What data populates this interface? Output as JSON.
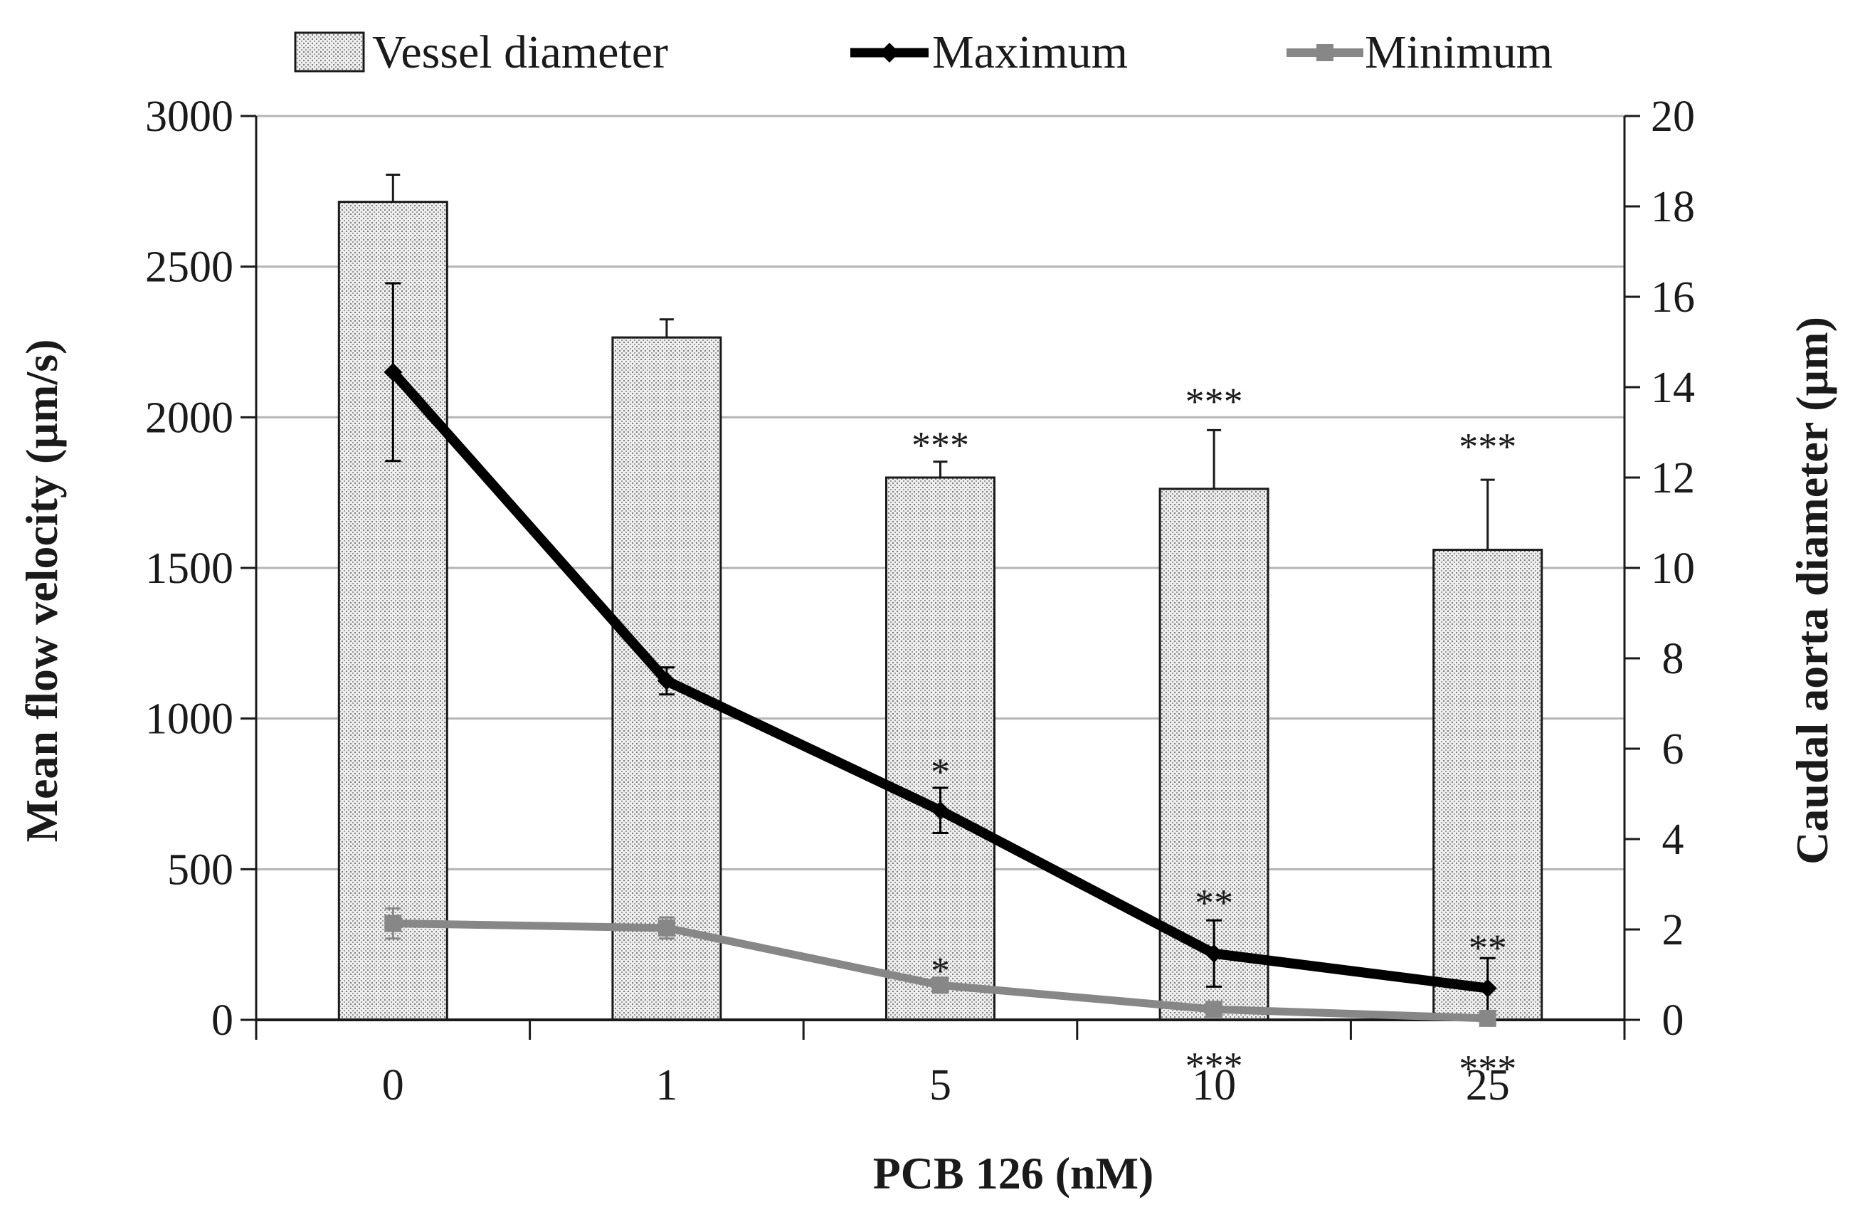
{
  "chart_data": {
    "type": "bar+line",
    "title": "",
    "xlabel": "PCB 126 (nM)",
    "ylabel_left": "Mean flow velocity (µm/s)",
    "ylabel_right": "Caudal aorta diameter (µm)",
    "ylim_left": [
      0,
      3000
    ],
    "yticks_left": [
      0,
      500,
      1000,
      1500,
      2000,
      2500,
      3000
    ],
    "ylim_right": [
      0,
      20
    ],
    "yticks_right": [
      0,
      2,
      4,
      6,
      8,
      10,
      12,
      14,
      16,
      18,
      20
    ],
    "grid": true,
    "legend_position": "top",
    "categories": [
      "0",
      "1",
      "5",
      "10",
      "25"
    ],
    "bar_series": {
      "name": "Vessel diameter",
      "axis": "right",
      "values": [
        18.1,
        15.1,
        12.0,
        11.75,
        10.4
      ],
      "errors": [
        0.6,
        0.4,
        0.35,
        1.3,
        1.55
      ],
      "fill": "#e6e6e6",
      "stroke": "#1a1a1a"
    },
    "line_series": [
      {
        "name": "Maximum",
        "axis": "left",
        "values": [
          2150,
          1125,
          695,
          220,
          105
        ],
        "errors": [
          295,
          45,
          75,
          110,
          100
        ],
        "color": "#000000",
        "marker": "diamond"
      },
      {
        "name": "Minimum",
        "axis": "left",
        "values": [
          320,
          305,
          115,
          35,
          5
        ],
        "errors": [
          50,
          35,
          12,
          8,
          5
        ],
        "color": "#878787",
        "marker": "square"
      }
    ],
    "annotations": [
      {
        "category": 2,
        "text": "***",
        "axis": "left",
        "value": 1960
      },
      {
        "category": 3,
        "text": "***",
        "axis": "left",
        "value": 2105
      },
      {
        "category": 4,
        "text": "***",
        "axis": "left",
        "value": 1955
      },
      {
        "category": 2,
        "text": "*",
        "axis": "left",
        "value": 875
      },
      {
        "category": 3,
        "text": "**",
        "axis": "left",
        "value": 440
      },
      {
        "category": 4,
        "text": "**",
        "axis": "left",
        "value": 290
      },
      {
        "category": 2,
        "text": "*",
        "axis": "left",
        "value": 215
      },
      {
        "category": 3,
        "text": "***",
        "axis": "left",
        "value": -100
      },
      {
        "category": 4,
        "text": "***",
        "axis": "left",
        "value": -110
      }
    ]
  }
}
